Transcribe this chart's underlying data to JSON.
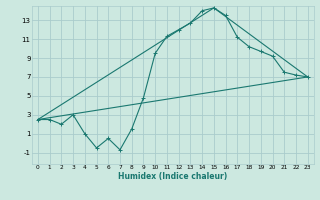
{
  "title": "",
  "xlabel": "Humidex (Indice chaleur)",
  "background_color": "#cce8e0",
  "grid_color": "#aacccc",
  "line_color": "#1a7870",
  "xlim": [
    -0.5,
    23.5
  ],
  "ylim": [
    -2.2,
    14.5
  ],
  "xticks": [
    0,
    1,
    2,
    3,
    4,
    5,
    6,
    7,
    8,
    9,
    10,
    11,
    12,
    13,
    14,
    15,
    16,
    17,
    18,
    19,
    20,
    21,
    22,
    23
  ],
  "yticks": [
    -1,
    1,
    3,
    5,
    7,
    9,
    11,
    13
  ],
  "series1_x": [
    0,
    1,
    2,
    3,
    4,
    5,
    6,
    7,
    8,
    9,
    10,
    11,
    12,
    13,
    14,
    15,
    16,
    17,
    18,
    19,
    20,
    21,
    22,
    23
  ],
  "series1_y": [
    2.5,
    2.5,
    2.0,
    3.0,
    1.0,
    -0.5,
    0.5,
    -0.7,
    1.5,
    4.8,
    9.5,
    11.3,
    12.0,
    12.7,
    14.0,
    14.3,
    13.5,
    11.2,
    10.2,
    9.7,
    9.2,
    7.5,
    7.2,
    7.0
  ],
  "series2_x": [
    0,
    23
  ],
  "series2_y": [
    2.5,
    7.0
  ],
  "series3_x": [
    0,
    15,
    23
  ],
  "series3_y": [
    2.5,
    14.3,
    7.0
  ]
}
